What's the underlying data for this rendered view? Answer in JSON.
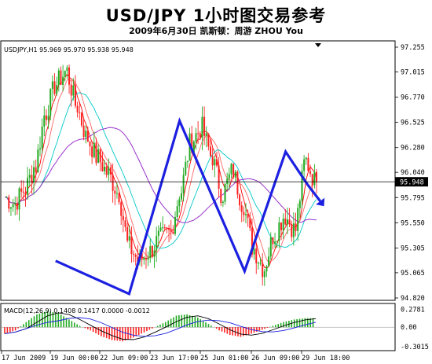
{
  "title": "USD/JPY 1小时图交易参考",
  "subtitle": "2009年6月30日    凯斯顿：周游 ZHOU You",
  "chart_data": [
    {
      "type": "candlestick",
      "title": "USDJPY,H1 95.969 95.970 95.938 95.948",
      "yticks": [
        "97.255",
        "97.015",
        "96.770",
        "96.525",
        "96.280",
        "96.040",
        "95.795",
        "95.550",
        "95.305",
        "95.065",
        "94.820"
      ],
      "ylim": [
        94.8,
        97.28
      ],
      "xticks": [
        "17 Jun 2009",
        "19 Jun 00:00",
        "22 Jun 09:00",
        "23 Jun 17:00",
        "25 Jun 01:00",
        "26 Jun 09:00",
        "29 Jun 18:00"
      ],
      "current_price": "95.948",
      "close": [
        95.8,
        95.74,
        95.87,
        96.1,
        96.62,
        96.9,
        97.02,
        96.68,
        96.37,
        96.18,
        96.03,
        95.84,
        95.32,
        95.18,
        95.27,
        95.4,
        95.45,
        95.86,
        96.34,
        96.47,
        96.19,
        95.83,
        96.05,
        95.73,
        95.3,
        95.11,
        95.44,
        95.62,
        95.48,
        96.15,
        95.95
      ],
      "zigzag": {
        "points": [
          [
            5,
            95.18
          ],
          [
            12,
            94.86
          ],
          [
            16.8,
            96.54
          ],
          [
            23,
            95.08
          ],
          [
            26.9,
            96.24
          ],
          [
            29,
            95.92
          ]
        ],
        "arrow_end": [
          30.2,
          95.76
        ],
        "color": "#1c20e0"
      },
      "moving_averages_colors": [
        "#ff0000",
        "#ff6666",
        "#00c8c8",
        "#9933cc"
      ]
    },
    {
      "type": "histogram",
      "title": "MACD(12,26,9) 0.1408 0.1417 0.0000 -0.0012",
      "yticks": [
        "0.2781",
        "0.00",
        "-0.3015"
      ],
      "ylim": [
        -0.34,
        0.32
      ],
      "values": [
        -0.1,
        -0.05,
        0.08,
        0.2,
        0.25,
        0.22,
        0.12,
        0.02,
        -0.05,
        -0.14,
        -0.2,
        -0.22,
        -0.16,
        -0.08,
        0.0,
        0.08,
        0.18,
        0.2,
        0.15,
        0.05,
        -0.05,
        -0.12,
        -0.15,
        -0.1,
        -0.04,
        0.02,
        0.08,
        0.12,
        0.14,
        0.14
      ],
      "bar_colors": {
        "positive": "#22aa22",
        "negative": "#ff2222"
      }
    }
  ]
}
